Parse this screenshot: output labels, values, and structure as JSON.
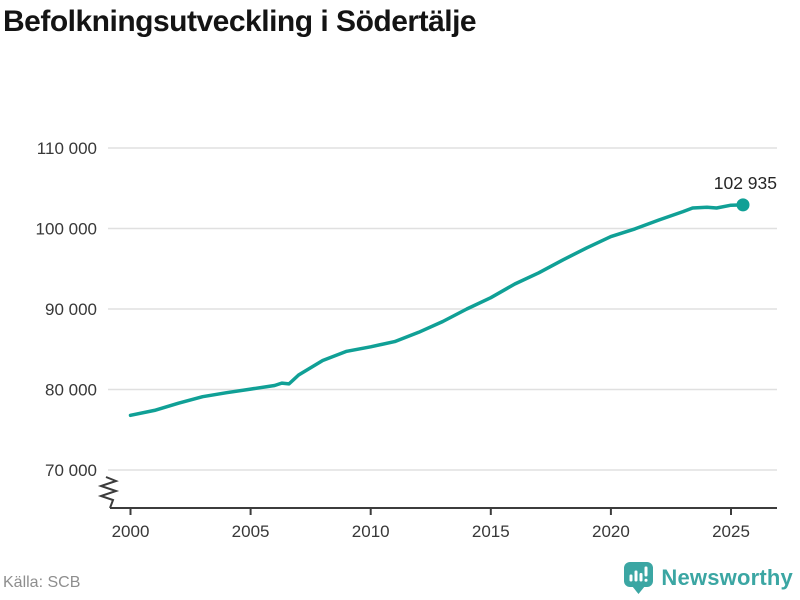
{
  "title": "Befolkningsutveckling i Södertälje",
  "source": "Källa: SCB",
  "branding": {
    "name": "Newsworthy",
    "icon": "newsworthy-chart-bubble-icon",
    "color": "#3BA6A3"
  },
  "colors": {
    "series": "#10A096",
    "grid": "#e0e0e0",
    "axis": "#3c3c3c",
    "tick_label": "#383838",
    "end_label": "#262626"
  },
  "chart_data": {
    "type": "line",
    "title": "Befolkningsutveckling i Södertälje",
    "xlabel": "",
    "ylabel": "",
    "grid": "horizontal",
    "legend": "none",
    "axis_break": true,
    "x_ticks": [
      2000,
      2005,
      2010,
      2015,
      2020,
      2025
    ],
    "x_tick_labels": [
      "2000",
      "2005",
      "2010",
      "2015",
      "2020",
      "2025"
    ],
    "y_ticks": [
      70000,
      80000,
      90000,
      100000,
      110000
    ],
    "y_tick_labels": [
      "70 000",
      "80 000",
      "90 000",
      "100 000",
      "110 000"
    ],
    "ylim": [
      70000,
      110000
    ],
    "xlim": [
      2000,
      2025.5
    ],
    "series_color": "#10A096",
    "end_label": "102 935",
    "end_value": 102935,
    "x": [
      2000,
      2001,
      2002,
      2003,
      2004,
      2005,
      2006,
      2006.3,
      2006.6,
      2007,
      2008,
      2009,
      2010,
      2011,
      2012,
      2013,
      2014,
      2015,
      2016,
      2017,
      2018,
      2019,
      2020,
      2021,
      2022,
      2023,
      2023.4,
      2024,
      2024.4,
      2025,
      2025.5
    ],
    "values": [
      76800,
      77400,
      78300,
      79100,
      79600,
      80050,
      80500,
      80800,
      80700,
      81800,
      83600,
      84750,
      85300,
      85950,
      87100,
      88450,
      90000,
      91400,
      93100,
      94500,
      96100,
      97600,
      99000,
      99950,
      101050,
      102100,
      102550,
      102650,
      102550,
      102900,
      102935
    ]
  }
}
